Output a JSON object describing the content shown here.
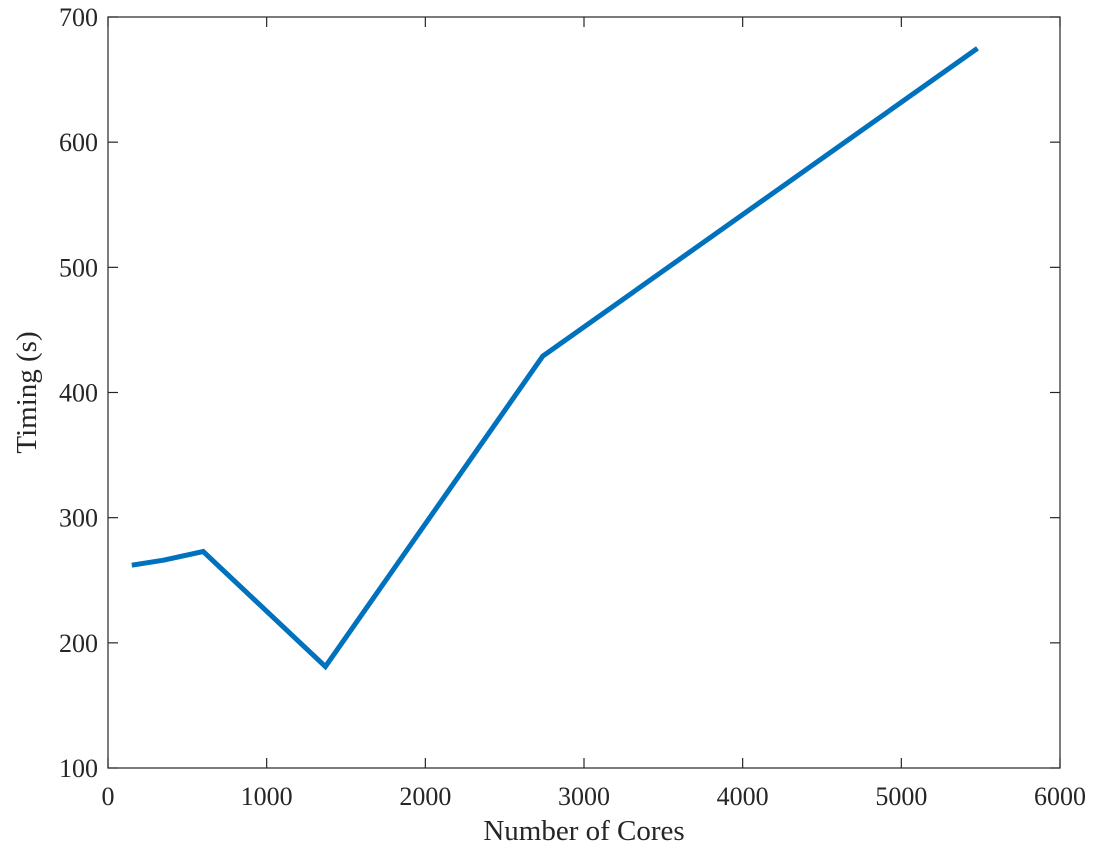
{
  "chart_data": {
    "type": "line",
    "title": "",
    "xlabel": "Number of Cores",
    "ylabel": "Timing (s)",
    "xlim": [
      0,
      6000
    ],
    "ylim": [
      100,
      700
    ],
    "xticks": [
      0,
      1000,
      2000,
      3000,
      4000,
      5000,
      6000
    ],
    "yticks": [
      100,
      200,
      300,
      400,
      500,
      600,
      700
    ],
    "xtick_labels": [
      "0",
      "1000",
      "2000",
      "3000",
      "4000",
      "5000",
      "6000"
    ],
    "ytick_labels": [
      "100",
      "200",
      "300",
      "400",
      "500",
      "600",
      "700"
    ],
    "grid": false,
    "box": true,
    "series": [
      {
        "color": "#0072BD",
        "x": [
          150,
          350,
          600,
          1370,
          2740,
          5480
        ],
        "y": [
          262,
          266,
          273,
          181,
          429,
          675
        ]
      }
    ]
  }
}
